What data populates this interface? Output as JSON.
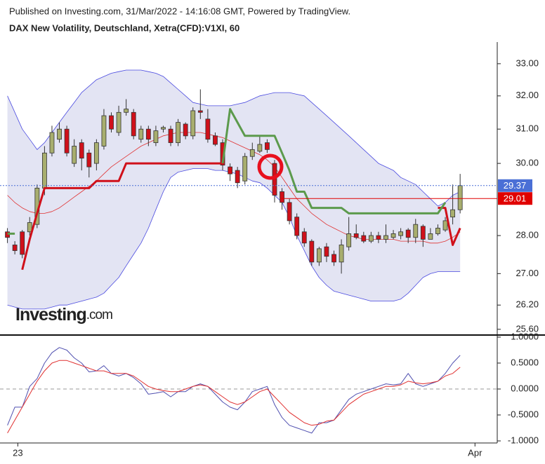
{
  "chart_data": [
    {
      "type": "candlestick",
      "source": "Published on Investing.com, 31/Mar/2022 - 14:16:08 GMT, Powered by TradingView.",
      "title": "DAX New Volatility, Deutschland, Xetra(CFD):V1XI, 60",
      "watermark": {
        "brand": "Investing",
        "suffix": ".com"
      },
      "xlim": [
        -1,
        66
      ],
      "ylim": [
        25.46,
        33.69
      ],
      "log_scale": true,
      "yticks": [
        {
          "value": 33,
          "label": "33.00"
        },
        {
          "value": 32,
          "label": "32.00"
        },
        {
          "value": 31,
          "label": "31.00"
        },
        {
          "value": 30,
          "label": "30.00"
        },
        {
          "value": 28,
          "label": "28.00"
        },
        {
          "value": 27,
          "label": "27.00"
        },
        {
          "value": 26.2,
          "label": "26.20"
        },
        {
          "value": 25.6,
          "label": "25.60"
        }
      ],
      "up_color": "#a8ae6e",
      "down_color": "#d0101a",
      "candles": {
        "open": [
          28.1,
          27.75,
          28.1,
          28.1,
          28.3,
          29.3,
          30.3,
          30.7,
          31.0,
          30.0,
          30.6,
          30.3,
          30.0,
          30.5,
          31.4,
          30.9,
          31.5,
          31.5,
          30.7,
          31.0,
          30.6,
          31.0,
          31.0,
          30.6,
          31.15,
          30.8,
          31.55,
          31.3,
          30.8,
          30.6,
          29.9,
          29.8,
          29.5,
          30.2,
          30.35,
          30.6,
          30.0,
          29.2,
          28.9,
          28.5,
          28.1,
          27.85,
          27.3,
          27.7,
          27.5,
          27.3,
          27.7,
          28.05,
          28.0,
          27.85,
          28.0,
          27.9,
          27.95,
          28.0,
          28.15,
          27.95,
          28.25,
          27.9,
          28.05,
          28.15,
          28.5,
          28.7
        ],
        "high": [
          28.2,
          27.85,
          28.15,
          28.5,
          29.4,
          30.5,
          31.1,
          31.2,
          31.1,
          30.7,
          30.7,
          30.4,
          30.7,
          31.6,
          31.5,
          31.7,
          31.9,
          31.6,
          31.1,
          31.1,
          31.1,
          31.1,
          31.1,
          31.3,
          31.2,
          31.65,
          32.2,
          31.6,
          30.9,
          30.7,
          30.0,
          29.9,
          30.3,
          30.6,
          30.8,
          30.7,
          30.1,
          29.3,
          29.0,
          28.6,
          28.2,
          27.9,
          27.7,
          27.8,
          27.6,
          27.9,
          28.5,
          28.3,
          28.1,
          28.1,
          28.1,
          28.3,
          28.15,
          28.2,
          28.2,
          28.45,
          28.3,
          28.2,
          28.3,
          28.5,
          29.4,
          29.7
        ],
        "low": [
          27.8,
          27.5,
          27.4,
          28.0,
          28.2,
          29.1,
          30.2,
          30.6,
          30.2,
          29.9,
          29.8,
          29.6,
          29.8,
          30.4,
          30.9,
          30.8,
          31.4,
          30.7,
          30.6,
          30.5,
          30.5,
          30.9,
          30.5,
          30.5,
          30.7,
          30.7,
          31.3,
          30.6,
          30.5,
          29.8,
          29.5,
          29.3,
          29.4,
          30.1,
          30.3,
          30.3,
          28.9,
          28.7,
          28.3,
          27.9,
          27.7,
          27.2,
          27.2,
          27.3,
          27.2,
          27.0,
          27.6,
          27.9,
          27.8,
          27.8,
          27.8,
          27.8,
          27.9,
          27.9,
          27.8,
          27.8,
          27.7,
          27.9,
          28.0,
          28.1,
          28.3,
          28.6
        ],
        "close": [
          27.95,
          27.6,
          27.5,
          28.35,
          29.3,
          30.3,
          30.9,
          31.0,
          30.3,
          30.5,
          30.15,
          29.9,
          30.6,
          31.4,
          31.0,
          31.5,
          31.6,
          30.8,
          31.0,
          30.7,
          30.95,
          31.05,
          30.6,
          31.2,
          30.8,
          31.55,
          31.5,
          30.7,
          30.55,
          29.95,
          29.7,
          29.45,
          30.2,
          30.4,
          30.55,
          30.4,
          29.1,
          28.9,
          28.4,
          28.0,
          27.8,
          27.3,
          27.65,
          27.45,
          27.3,
          27.75,
          28.05,
          27.95,
          27.85,
          28.0,
          27.9,
          28.0,
          28.05,
          28.1,
          27.95,
          28.3,
          27.9,
          28.05,
          28.2,
          28.4,
          28.7,
          29.37
        ]
      },
      "band_fill": "#e3e4f3",
      "series": [
        {
          "color": "#4a4ae0",
          "width": 0.8,
          "values": [
            32.0,
            31.5,
            31.0,
            30.7,
            30.4,
            30.6,
            30.9,
            31.2,
            31.5,
            31.8,
            32.1,
            32.3,
            32.5,
            32.6,
            32.7,
            32.75,
            32.8,
            32.8,
            32.8,
            32.75,
            32.7,
            32.6,
            32.4,
            32.2,
            32.0,
            31.8,
            31.75,
            31.7,
            31.7,
            31.7,
            31.7,
            31.75,
            31.8,
            31.9,
            32.0,
            32.05,
            32.1,
            32.1,
            32.1,
            32.05,
            32.0,
            31.8,
            31.6,
            31.4,
            31.2,
            31.0,
            30.8,
            30.6,
            30.4,
            30.2,
            30.0,
            29.9,
            29.8,
            29.6,
            29.5,
            29.4,
            29.2,
            29.0,
            28.8,
            28.9,
            29.1,
            29.2
          ]
        },
        {
          "color": "#4a4ae0",
          "width": 0.8,
          "values": [
            26.2,
            26.15,
            26.1,
            26.1,
            26.1,
            26.1,
            26.15,
            26.2,
            26.2,
            26.25,
            26.3,
            26.35,
            26.4,
            26.5,
            26.7,
            26.9,
            27.2,
            27.5,
            27.8,
            28.2,
            28.7,
            29.2,
            29.6,
            29.75,
            29.8,
            29.85,
            29.85,
            29.85,
            29.8,
            29.8,
            29.75,
            29.7,
            29.6,
            29.5,
            29.45,
            29.3,
            29.1,
            28.9,
            28.5,
            28.0,
            27.6,
            27.2,
            26.9,
            26.7,
            26.55,
            26.5,
            26.45,
            26.4,
            26.35,
            26.3,
            26.3,
            26.3,
            26.3,
            26.35,
            26.5,
            26.7,
            26.9,
            27.0,
            27.05,
            27.05,
            27.05,
            27.05
          ]
        },
        {
          "color": "#e03030",
          "width": 0.8,
          "values": [
            29.1,
            28.9,
            28.75,
            28.65,
            28.6,
            28.6,
            28.65,
            28.75,
            28.9,
            29.05,
            29.2,
            29.35,
            29.5,
            29.7,
            29.9,
            30.05,
            30.2,
            30.35,
            30.5,
            30.6,
            30.7,
            30.8,
            30.85,
            30.9,
            30.9,
            30.9,
            30.9,
            30.85,
            30.8,
            30.75,
            30.65,
            30.55,
            30.45,
            30.35,
            30.25,
            30.1,
            29.9,
            29.6,
            29.3,
            29.0,
            28.8,
            28.6,
            28.45,
            28.3,
            28.2,
            28.1,
            28.0,
            27.95,
            27.9,
            27.9,
            27.9,
            27.9,
            27.9,
            27.85,
            27.85,
            27.85,
            27.85,
            27.8,
            27.8,
            27.85,
            27.95,
            28.1
          ]
        },
        {
          "color": "#d0101a",
          "width": 3,
          "values": [
            null,
            null,
            27.1,
            27.9,
            28.6,
            29.3,
            29.3,
            29.3,
            29.3,
            29.3,
            29.3,
            29.3,
            29.5,
            29.5,
            29.5,
            29.5,
            30.0,
            30.0,
            30.0,
            30.0,
            30.0,
            30.0,
            30.0,
            30.0,
            30.0,
            30.0,
            30.0,
            30.0,
            30.0,
            30.0,
            null,
            null,
            null,
            null,
            null,
            null,
            null,
            null,
            null,
            null,
            null,
            null,
            null,
            null,
            null,
            null,
            null,
            null,
            null,
            null,
            null,
            null,
            null,
            null,
            null,
            null,
            null,
            null,
            28.75,
            28.75,
            27.75,
            28.2
          ]
        },
        {
          "color": "#5c9a4c",
          "width": 3,
          "values": [
            28.05,
            28.05,
            null,
            null,
            null,
            null,
            null,
            null,
            null,
            null,
            null,
            null,
            null,
            null,
            null,
            null,
            null,
            null,
            null,
            null,
            null,
            null,
            null,
            null,
            null,
            null,
            null,
            null,
            null,
            30.0,
            31.6,
            31.2,
            30.8,
            30.8,
            30.8,
            30.8,
            30.8,
            30.3,
            29.8,
            29.2,
            29.2,
            28.75,
            28.75,
            28.75,
            28.75,
            28.75,
            28.6,
            28.6,
            28.6,
            28.6,
            28.6,
            28.6,
            28.6,
            28.6,
            28.6,
            28.6,
            28.6,
            28.6,
            28.6,
            28.9,
            null,
            null
          ]
        }
      ],
      "price_lines": [
        {
          "value": 29.37,
          "label": "29.37",
          "color": "#4a6fd6",
          "dotted": true
        },
        {
          "value": 29.01,
          "label": "29.01",
          "color": "#e00000",
          "dotted": false
        }
      ]
    },
    {
      "type": "line",
      "xlim": [
        -1,
        66
      ],
      "ylim": [
        -1.04,
        1.04
      ],
      "yticks": [
        {
          "value": 1,
          "label": "1.0000"
        },
        {
          "value": 0.5,
          "label": "0.5000"
        },
        {
          "value": 0,
          "label": "0.0000"
        },
        {
          "value": -0.5,
          "label": "-0.5000"
        },
        {
          "value": -1,
          "label": "-1.0000"
        }
      ],
      "xticks": [
        {
          "value": 1.4,
          "label": "23"
        },
        {
          "value": 63,
          "label": "Apr"
        }
      ],
      "zero_line": 0,
      "series": [
        {
          "color": "#5050b0",
          "width": 1,
          "values": [
            -0.7,
            -0.35,
            -0.35,
            0.05,
            0.2,
            0.5,
            0.7,
            0.8,
            0.75,
            0.6,
            0.5,
            0.33,
            0.35,
            0.45,
            0.3,
            0.25,
            0.3,
            0.22,
            0.1,
            -0.1,
            -0.08,
            -0.05,
            -0.15,
            -0.05,
            -0.05,
            0.05,
            0.1,
            0.05,
            -0.1,
            -0.25,
            -0.35,
            -0.4,
            -0.25,
            -0.05,
            0.0,
            0.05,
            -0.3,
            -0.55,
            -0.7,
            -0.75,
            -0.8,
            -0.85,
            -0.65,
            -0.65,
            -0.6,
            -0.4,
            -0.2,
            -0.1,
            -0.05,
            0.0,
            0.05,
            0.1,
            0.08,
            0.1,
            0.3,
            0.1,
            0.05,
            0.1,
            0.15,
            0.3,
            0.5,
            0.65
          ]
        },
        {
          "color": "#e03030",
          "width": 1,
          "values": [
            -0.85,
            -0.6,
            -0.35,
            -0.1,
            0.15,
            0.35,
            0.5,
            0.55,
            0.55,
            0.5,
            0.45,
            0.4,
            0.35,
            0.35,
            0.3,
            0.3,
            0.3,
            0.25,
            0.15,
            0.05,
            0.0,
            -0.03,
            -0.05,
            -0.05,
            0.0,
            0.05,
            0.08,
            0.05,
            -0.05,
            -0.15,
            -0.25,
            -0.3,
            -0.25,
            -0.15,
            -0.05,
            0.0,
            -0.15,
            -0.3,
            -0.45,
            -0.55,
            -0.65,
            -0.7,
            -0.68,
            -0.62,
            -0.6,
            -0.45,
            -0.3,
            -0.2,
            -0.1,
            -0.05,
            0.0,
            0.05,
            0.05,
            0.08,
            0.15,
            0.12,
            0.1,
            0.12,
            0.15,
            0.25,
            0.3,
            0.42
          ]
        }
      ]
    }
  ]
}
